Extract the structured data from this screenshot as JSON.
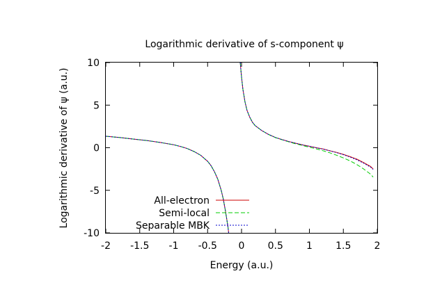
{
  "chart_data": {
    "type": "line",
    "title": "Logarithmic derivative of s-component ψ",
    "xlabel": "Energy (a.u.)",
    "ylabel": "Logarithmic derivative of ψ (a.u.)",
    "xlim": [
      -2,
      2
    ],
    "ylim": [
      -10,
      10
    ],
    "x_ticks": [
      -2,
      -1.5,
      -1,
      -0.5,
      0,
      0.5,
      1,
      1.5,
      2
    ],
    "x_tick_labels": [
      "-2",
      "-1.5",
      "-1",
      "-0.5",
      "0",
      "0.5",
      "1",
      "1.5",
      "2"
    ],
    "y_ticks": [
      -10,
      -5,
      0,
      5,
      10
    ],
    "y_tick_labels": [
      "-10",
      "-5",
      "0",
      "5",
      "10"
    ],
    "grid": false,
    "legend_position": "bottom-left",
    "series": [
      {
        "name": "All-electron",
        "color": "#cc0000",
        "dash": "solid",
        "segments": [
          [
            [
              -2.0,
              1.35
            ],
            [
              -1.8,
              1.2
            ],
            [
              -1.6,
              1.02
            ],
            [
              -1.4,
              0.85
            ],
            [
              -1.2,
              0.62
            ],
            [
              -1.0,
              0.35
            ],
            [
              -0.9,
              0.15
            ],
            [
              -0.8,
              -0.1
            ],
            [
              -0.7,
              -0.45
            ],
            [
              -0.6,
              -0.9
            ],
            [
              -0.5,
              -1.6
            ],
            [
              -0.45,
              -2.1
            ],
            [
              -0.4,
              -2.8
            ],
            [
              -0.35,
              -3.7
            ],
            [
              -0.3,
              -5.0
            ],
            [
              -0.27,
              -6.0
            ],
            [
              -0.24,
              -7.3
            ],
            [
              -0.22,
              -8.3
            ],
            [
              -0.2,
              -9.3
            ],
            [
              -0.19,
              -10.0
            ]
          ],
          [
            [
              -0.02,
              10.0
            ],
            [
              0.0,
              8.3
            ],
            [
              0.02,
              6.9
            ],
            [
              0.05,
              5.4
            ],
            [
              0.08,
              4.4
            ],
            [
              0.12,
              3.6
            ],
            [
              0.16,
              3.0
            ],
            [
              0.2,
              2.6
            ],
            [
              0.3,
              2.0
            ],
            [
              0.4,
              1.55
            ],
            [
              0.5,
              1.2
            ],
            [
              0.6,
              0.95
            ],
            [
              0.7,
              0.72
            ],
            [
              0.8,
              0.52
            ],
            [
              0.9,
              0.33
            ],
            [
              1.0,
              0.17
            ],
            [
              1.1,
              0.0
            ],
            [
              1.2,
              -0.15
            ],
            [
              1.3,
              -0.35
            ],
            [
              1.4,
              -0.55
            ],
            [
              1.5,
              -0.78
            ],
            [
              1.6,
              -1.05
            ],
            [
              1.7,
              -1.35
            ],
            [
              1.8,
              -1.75
            ],
            [
              1.9,
              -2.2
            ],
            [
              1.94,
              -2.5
            ]
          ]
        ]
      },
      {
        "name": "Semi-local",
        "color": "#00cc00",
        "dash": "6,3",
        "segments": [
          [
            [
              -2.0,
              1.35
            ],
            [
              -1.8,
              1.2
            ],
            [
              -1.6,
              1.02
            ],
            [
              -1.4,
              0.85
            ],
            [
              -1.2,
              0.62
            ],
            [
              -1.0,
              0.35
            ],
            [
              -0.9,
              0.15
            ],
            [
              -0.8,
              -0.1
            ],
            [
              -0.7,
              -0.45
            ],
            [
              -0.6,
              -0.9
            ],
            [
              -0.5,
              -1.6
            ],
            [
              -0.45,
              -2.1
            ],
            [
              -0.4,
              -2.8
            ],
            [
              -0.35,
              -3.7
            ],
            [
              -0.3,
              -5.0
            ],
            [
              -0.27,
              -6.0
            ],
            [
              -0.24,
              -7.3
            ],
            [
              -0.22,
              -8.3
            ],
            [
              -0.2,
              -9.3
            ],
            [
              -0.19,
              -10.0
            ]
          ],
          [
            [
              -0.02,
              10.0
            ],
            [
              0.0,
              8.3
            ],
            [
              0.02,
              6.9
            ],
            [
              0.05,
              5.4
            ],
            [
              0.08,
              4.4
            ],
            [
              0.12,
              3.6
            ],
            [
              0.16,
              3.0
            ],
            [
              0.2,
              2.6
            ],
            [
              0.3,
              2.0
            ],
            [
              0.4,
              1.55
            ],
            [
              0.5,
              1.18
            ],
            [
              0.6,
              0.92
            ],
            [
              0.7,
              0.68
            ],
            [
              0.8,
              0.46
            ],
            [
              0.9,
              0.26
            ],
            [
              1.0,
              0.06
            ],
            [
              1.1,
              -0.13
            ],
            [
              1.2,
              -0.35
            ],
            [
              1.3,
              -0.6
            ],
            [
              1.4,
              -0.88
            ],
            [
              1.5,
              -1.2
            ],
            [
              1.6,
              -1.55
            ],
            [
              1.7,
              -1.98
            ],
            [
              1.8,
              -2.5
            ],
            [
              1.9,
              -3.1
            ],
            [
              1.94,
              -3.45
            ]
          ]
        ]
      },
      {
        "name": "Separable MBK",
        "color": "#0000cc",
        "dash": "2,2",
        "segments": [
          [
            [
              -2.0,
              1.35
            ],
            [
              -1.8,
              1.2
            ],
            [
              -1.6,
              1.02
            ],
            [
              -1.4,
              0.85
            ],
            [
              -1.2,
              0.62
            ],
            [
              -1.0,
              0.35
            ],
            [
              -0.9,
              0.15
            ],
            [
              -0.8,
              -0.1
            ],
            [
              -0.7,
              -0.45
            ],
            [
              -0.6,
              -0.9
            ],
            [
              -0.5,
              -1.6
            ],
            [
              -0.45,
              -2.1
            ],
            [
              -0.4,
              -2.8
            ],
            [
              -0.35,
              -3.7
            ],
            [
              -0.3,
              -5.0
            ],
            [
              -0.27,
              -6.0
            ],
            [
              -0.24,
              -7.3
            ],
            [
              -0.22,
              -8.3
            ],
            [
              -0.2,
              -9.3
            ],
            [
              -0.19,
              -10.0
            ]
          ],
          [
            [
              -0.02,
              10.0
            ],
            [
              0.0,
              8.3
            ],
            [
              0.02,
              6.9
            ],
            [
              0.05,
              5.4
            ],
            [
              0.08,
              4.4
            ],
            [
              0.12,
              3.6
            ],
            [
              0.16,
              3.0
            ],
            [
              0.2,
              2.6
            ],
            [
              0.3,
              2.0
            ],
            [
              0.4,
              1.55
            ],
            [
              0.5,
              1.2
            ],
            [
              0.6,
              0.95
            ],
            [
              0.7,
              0.72
            ],
            [
              0.8,
              0.52
            ],
            [
              0.9,
              0.33
            ],
            [
              1.0,
              0.17
            ],
            [
              1.1,
              0.0
            ],
            [
              1.2,
              -0.16
            ],
            [
              1.3,
              -0.37
            ],
            [
              1.4,
              -0.58
            ],
            [
              1.5,
              -0.82
            ],
            [
              1.6,
              -1.1
            ],
            [
              1.7,
              -1.42
            ],
            [
              1.8,
              -1.82
            ],
            [
              1.9,
              -2.28
            ],
            [
              1.94,
              -2.55
            ]
          ]
        ]
      }
    ]
  }
}
